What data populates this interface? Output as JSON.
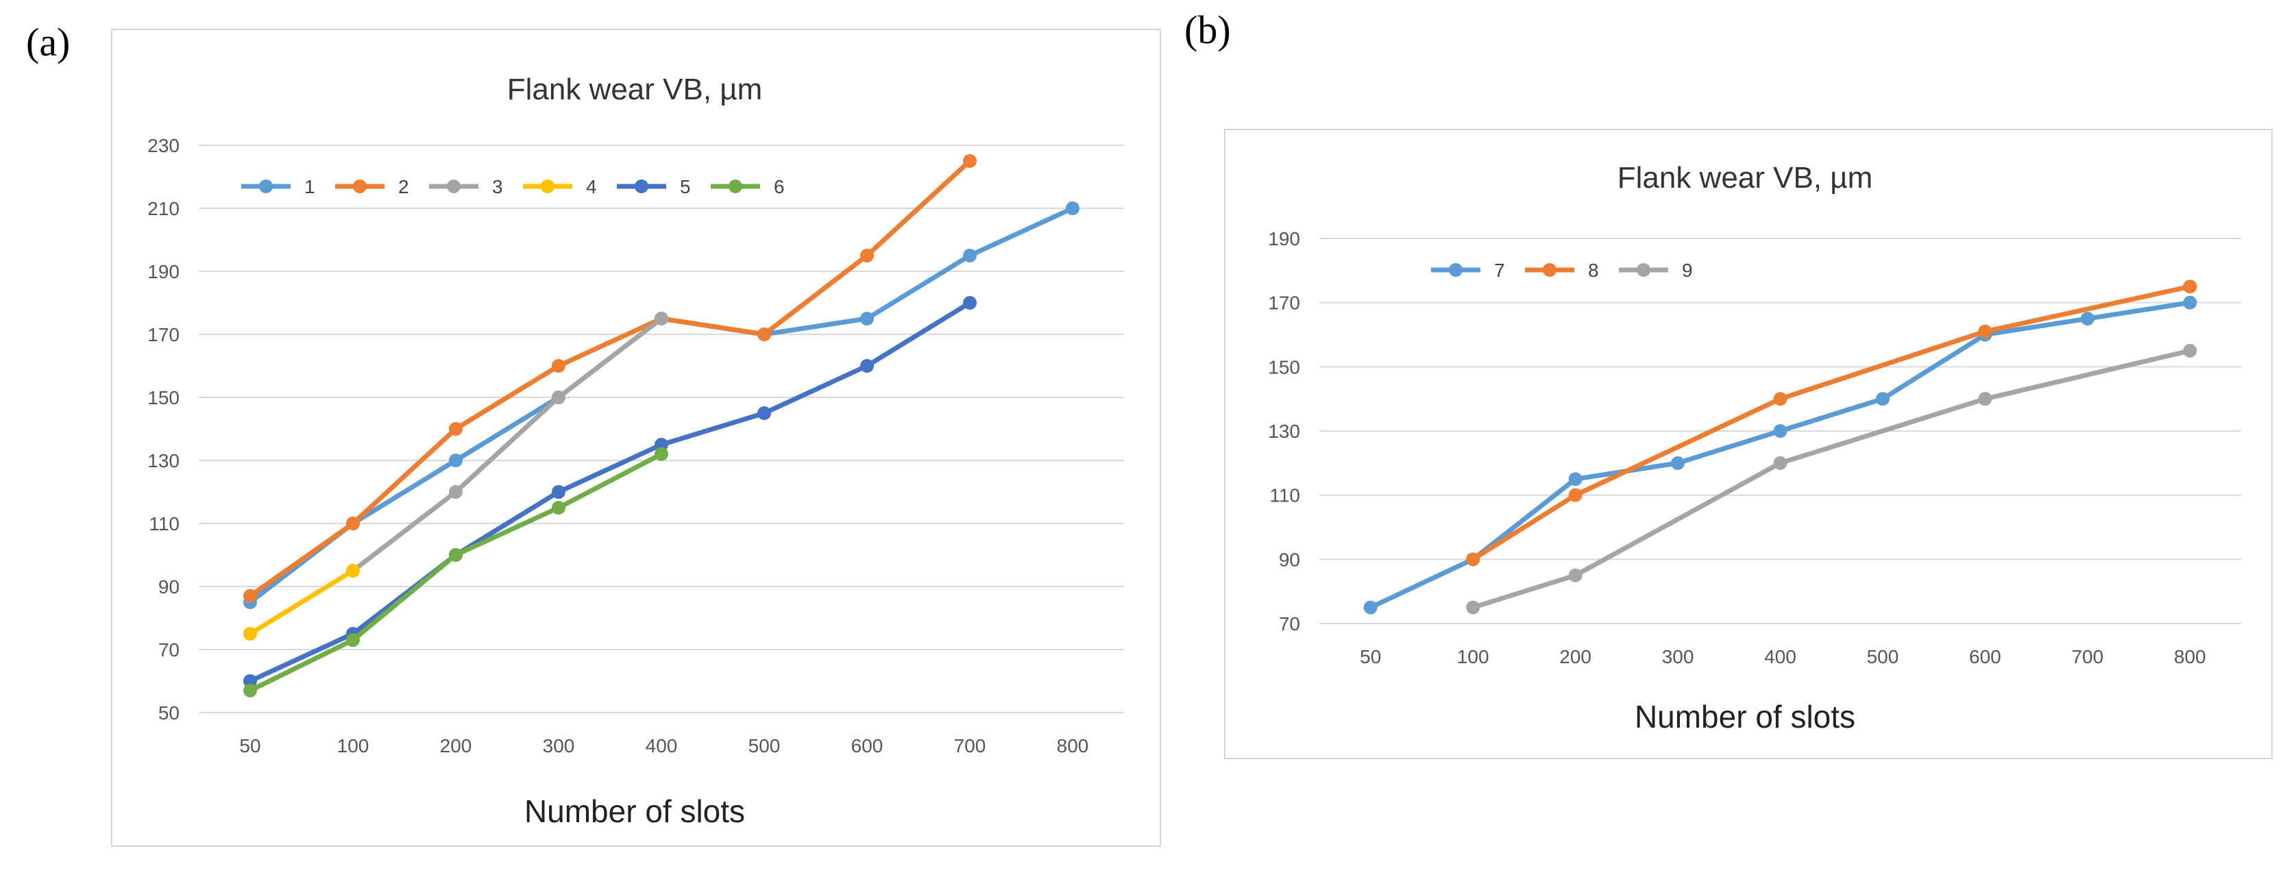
{
  "panels": [
    {
      "label": "(a)"
    },
    {
      "label": "(b)"
    }
  ],
  "chart_data": [
    {
      "type": "line",
      "title": "Flank wear VB, µm",
      "xlabel": "Number of slots",
      "ylabel": "",
      "categories": [
        "50",
        "100",
        "200",
        "300",
        "400",
        "500",
        "600",
        "700",
        "800"
      ],
      "ylim": [
        50,
        230
      ],
      "yticks": [
        50,
        70,
        90,
        110,
        130,
        150,
        170,
        190,
        210,
        230
      ],
      "grid": true,
      "legend_position": "top-left",
      "series": [
        {
          "name": "1",
          "color": "#5b9bd5",
          "values": [
            85,
            110,
            130,
            150,
            175,
            170,
            175,
            195,
            210
          ]
        },
        {
          "name": "2",
          "color": "#ed7d31",
          "values": [
            87,
            110,
            140,
            160,
            175,
            170,
            195,
            225,
            null
          ]
        },
        {
          "name": "3",
          "color": "#a5a5a5",
          "values": [
            null,
            95,
            120,
            150,
            175,
            null,
            null,
            null,
            null
          ]
        },
        {
          "name": "4",
          "color": "#ffc000",
          "values": [
            75,
            95,
            null,
            null,
            null,
            null,
            null,
            null,
            null
          ]
        },
        {
          "name": "5",
          "color": "#4472c4",
          "values": [
            60,
            75,
            100,
            120,
            135,
            145,
            160,
            180,
            null
          ]
        },
        {
          "name": "6",
          "color": "#70ad47",
          "values": [
            57,
            73,
            100,
            115,
            132,
            null,
            null,
            null,
            null
          ]
        }
      ]
    },
    {
      "type": "line",
      "title": "Flank wear VB, µm",
      "xlabel": "Number of slots",
      "ylabel": "",
      "categories": [
        "50",
        "100",
        "200",
        "300",
        "400",
        "500",
        "600",
        "700",
        "800"
      ],
      "ylim": [
        70,
        190
      ],
      "yticks": [
        70,
        90,
        110,
        130,
        150,
        170,
        190
      ],
      "grid": true,
      "legend_position": "top-left",
      "series": [
        {
          "name": "7",
          "color": "#5b9bd5",
          "values": [
            75,
            90,
            115,
            120,
            130,
            140,
            160,
            165,
            170
          ]
        },
        {
          "name": "8",
          "color": "#ed7d31",
          "values": [
            null,
            90,
            110,
            null,
            140,
            null,
            161,
            null,
            175
          ]
        },
        {
          "name": "9",
          "color": "#a5a5a5",
          "values": [
            null,
            75,
            85,
            null,
            120,
            null,
            140,
            null,
            155
          ]
        }
      ]
    }
  ]
}
